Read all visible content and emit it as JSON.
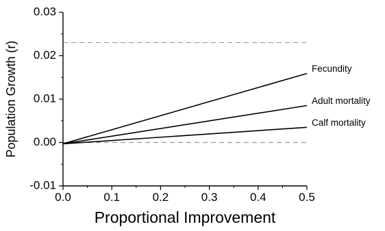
{
  "chart_data": {
    "type": "line",
    "xlabel": "Proportional Improvement",
    "ylabel": "Population Growth (r)",
    "xlim": [
      0.0,
      0.5
    ],
    "ylim": [
      -0.01,
      0.03
    ],
    "xticks": [
      0.0,
      0.1,
      0.2,
      0.3,
      0.4,
      0.5
    ],
    "xtick_labels": [
      "0.0",
      "0.1",
      "0.2",
      "0.3",
      "0.4",
      "0.5"
    ],
    "yticks": [
      -0.01,
      0.0,
      0.01,
      0.02,
      0.03
    ],
    "ytick_labels": [
      "-0.01",
      "0.00",
      "0.01",
      "0.02",
      "0.03"
    ],
    "grid": false,
    "legend": "none (series labeled at line ends, right side)",
    "reference_lines": [
      {
        "axis": "y",
        "value": 0.023,
        "style": "dashed",
        "color": "#999999"
      },
      {
        "axis": "y",
        "value": 0.0,
        "style": "dashed",
        "color": "#999999"
      }
    ],
    "series": [
      {
        "name": "Fecundity",
        "x": [
          0.0,
          0.5
        ],
        "y": [
          -0.0003,
          0.0159
        ]
      },
      {
        "name": "Adult mortality",
        "x": [
          0.0,
          0.5
        ],
        "y": [
          -0.0003,
          0.0085
        ]
      },
      {
        "name": "Calf mortality",
        "x": [
          0.0,
          0.5
        ],
        "y": [
          -0.0003,
          0.0035
        ]
      }
    ]
  }
}
